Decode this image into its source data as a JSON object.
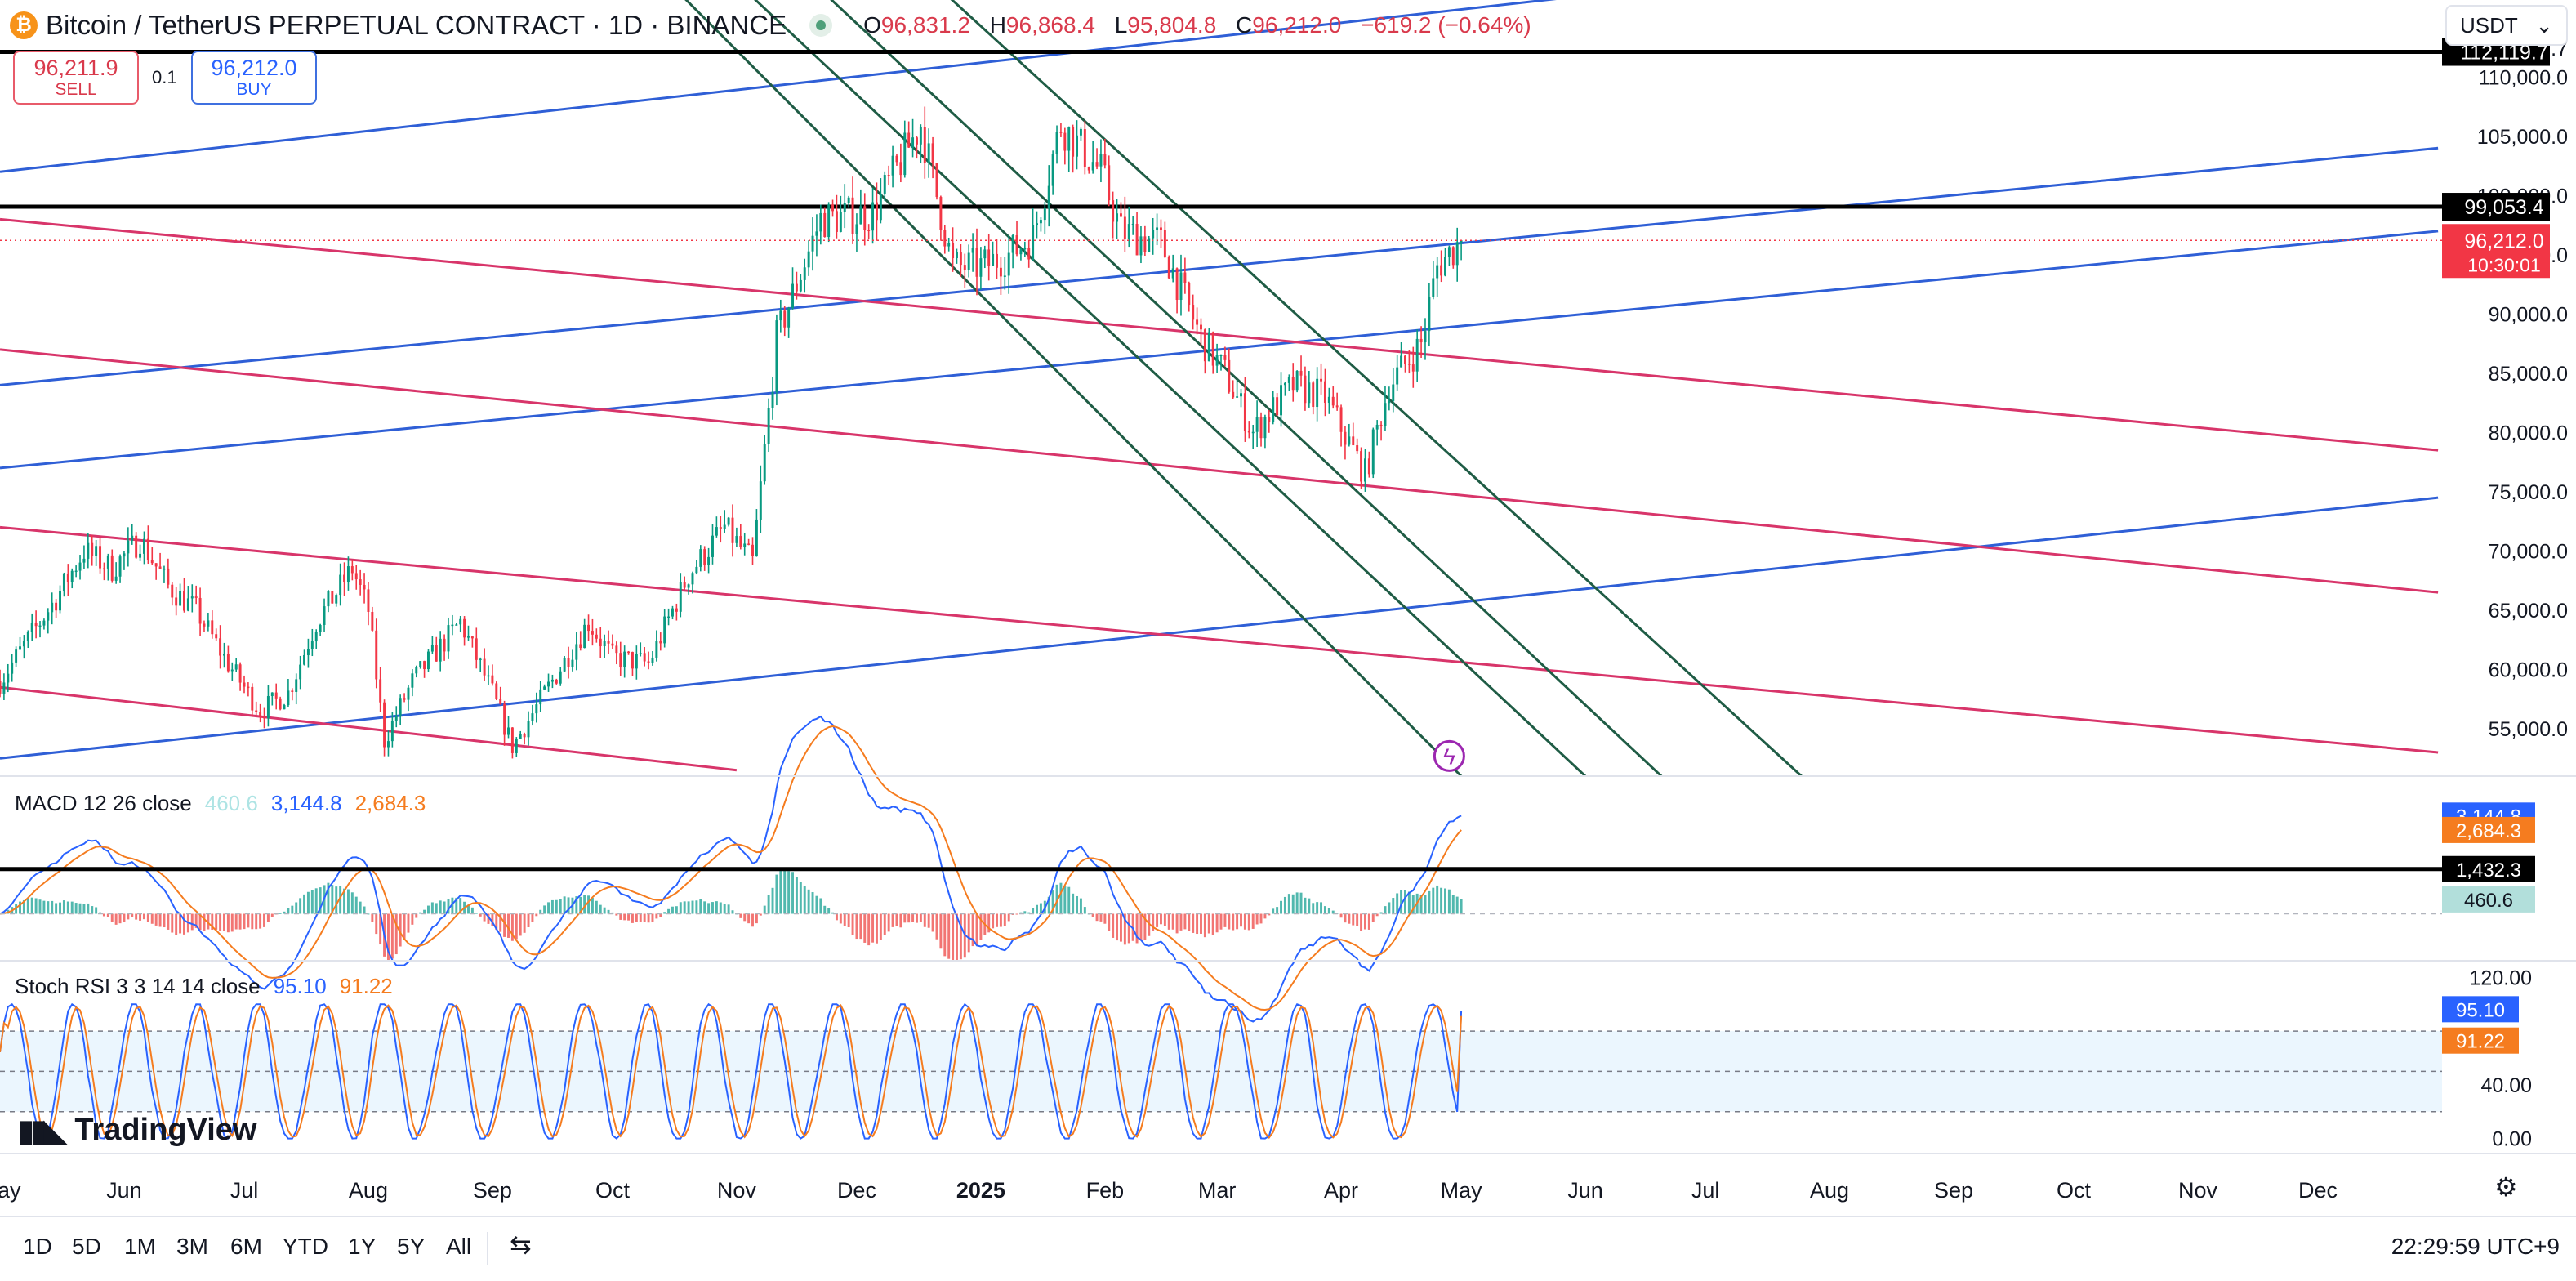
{
  "header": {
    "logo_glyph": "₿",
    "title": "Bitcoin / TetherUS PERPETUAL CONTRACT · 1D · BINANCE",
    "o_label": "O",
    "o": "96,831.2",
    "h_label": "H",
    "h": "96,868.4",
    "l_label": "L",
    "l": "95,804.8",
    "c_label": "C",
    "c": "96,212.0",
    "change": "−619.2 (−0.64%)"
  },
  "currency": {
    "value": "USDT",
    "chevron": "⌄"
  },
  "trade": {
    "sell_price": "96,211.9",
    "sell_label": "SELL",
    "spread": "0.1",
    "buy_price": "96,212.0",
    "buy_label": "BUY"
  },
  "indicators": {
    "macd": {
      "label": "MACD 12 26 close",
      "hist": "460.6",
      "macd": "3,144.8",
      "signal": "2,684.3"
    },
    "stoch": {
      "label": "Stoch RSI 3 3 14 14 close",
      "k": "95.10",
      "d": "91.22"
    }
  },
  "brand": {
    "mark": "▮▮◣",
    "name": "TradingView"
  },
  "timeframes": [
    "1D",
    "5D",
    "1M",
    "3M",
    "6M",
    "YTD",
    "1Y",
    "5Y",
    "All"
  ],
  "icons": {
    "compare": "⇆",
    "settings": "⚙",
    "lightning": "ϟ"
  },
  "clock": "22:29:59 UTC+9",
  "colors": {
    "up": "#089981",
    "down": "#f23645",
    "blue_line": "#2f5fd6",
    "pink_line": "#d8356a",
    "green_line": "#1f5c45",
    "macd": "#2962ff",
    "signal": "#f57c1f",
    "last_price": "#f23645"
  },
  "chart_data": {
    "type": "candlestick",
    "price_axis": {
      "ticks": [
        55000,
        60000,
        65000,
        70000,
        75000,
        80000,
        85000,
        90000,
        95000,
        100000,
        105000,
        110000
      ],
      "tick_labels": [
        "55,000.0",
        "60,000.0",
        "65,000.0",
        "70,000.0",
        "75,000.0",
        "80,000.0",
        "85,000.0",
        "90,000.0",
        "95,000.0",
        "100,000.0",
        "105,000.0",
        "110,000.0"
      ],
      "top_partial_label": "112,119.7",
      "range": [
        51000,
        116500
      ]
    },
    "time_axis": {
      "labels": [
        "May",
        "Jun",
        "Jul",
        "Aug",
        "Sep",
        "Oct",
        "Nov",
        "Dec",
        "2025",
        "Feb",
        "Mar",
        "Apr",
        "May",
        "Jun",
        "Jul",
        "Aug",
        "Sep",
        "Oct",
        "Nov",
        "Dec"
      ],
      "label_dates": [
        "2024-05-01",
        "2024-06-01",
        "2024-07-01",
        "2024-08-01",
        "2024-09-01",
        "2024-10-01",
        "2024-11-01",
        "2024-12-01",
        "2025-01-01",
        "2025-02-01",
        "2025-03-01",
        "2025-04-01",
        "2025-05-01",
        "2025-06-01",
        "2025-07-01",
        "2025-08-01",
        "2025-09-01",
        "2025-10-01",
        "2025-11-01",
        "2025-12-01"
      ],
      "bold_label": "2025",
      "range": [
        "2024-05-01",
        "2026-01-01"
      ]
    },
    "close_path": [
      [
        "2024-05-01",
        59000
      ],
      [
        "2024-05-08",
        62500
      ],
      [
        "2024-05-15",
        66000
      ],
      [
        "2024-05-22",
        70000
      ],
      [
        "2024-05-29",
        68500
      ],
      [
        "2024-06-05",
        71000
      ],
      [
        "2024-06-12",
        67000
      ],
      [
        "2024-06-19",
        65000
      ],
      [
        "2024-06-26",
        61000
      ],
      [
        "2024-07-05",
        56500
      ],
      [
        "2024-07-12",
        58000
      ],
      [
        "2024-07-19",
        64000
      ],
      [
        "2024-07-28",
        68500
      ],
      [
        "2024-08-01",
        65000
      ],
      [
        "2024-08-05",
        54000
      ],
      [
        "2024-08-12",
        59000
      ],
      [
        "2024-08-24",
        64000
      ],
      [
        "2024-09-01",
        58000
      ],
      [
        "2024-09-06",
        53500
      ],
      [
        "2024-09-15",
        58500
      ],
      [
        "2024-09-25",
        64000
      ],
      [
        "2024-10-01",
        61000
      ],
      [
        "2024-10-10",
        60500
      ],
      [
        "2024-10-20",
        68000
      ],
      [
        "2024-10-29",
        72000
      ],
      [
        "2024-11-05",
        69000
      ],
      [
        "2024-11-11",
        88000
      ],
      [
        "2024-11-22",
        98000
      ],
      [
        "2024-12-05",
        98500
      ],
      [
        "2024-12-17",
        106000
      ],
      [
        "2024-12-25",
        94000
      ],
      [
        "2025-01-01",
        94000
      ],
      [
        "2025-01-08",
        95000
      ],
      [
        "2025-01-14",
        96500
      ],
      [
        "2025-01-21",
        106000
      ],
      [
        "2025-01-31",
        102000
      ],
      [
        "2025-02-05",
        97000
      ],
      [
        "2025-02-15",
        96000
      ],
      [
        "2025-02-25",
        88000
      ],
      [
        "2025-03-03",
        85000
      ],
      [
        "2025-03-10",
        80000
      ],
      [
        "2025-03-20",
        84000
      ],
      [
        "2025-03-28",
        83000
      ],
      [
        "2025-04-07",
        76500
      ],
      [
        "2025-04-13",
        84000
      ],
      [
        "2025-04-21",
        87500
      ],
      [
        "2025-04-25",
        94000
      ],
      [
        "2025-05-01",
        96212
      ]
    ],
    "last_price": {
      "value": 96212,
      "label": "96,212.0",
      "countdown": "10:30:01"
    },
    "level_lines": [
      {
        "price": 99053.4,
        "label": "99,053.4"
      },
      {
        "price": 112119.7,
        "label": "112,119.7"
      }
    ],
    "trend_lines": [
      {
        "color": "blue",
        "from": [
          "2024-05-01",
          102000
        ],
        "to": [
          "2025-07-01",
          118000
        ]
      },
      {
        "color": "blue",
        "from": [
          "2024-05-01",
          84000
        ],
        "to": [
          "2025-12-31",
          104000
        ]
      },
      {
        "color": "blue",
        "from": [
          "2024-05-01",
          77000
        ],
        "to": [
          "2025-12-31",
          97000
        ]
      },
      {
        "color": "blue",
        "from": [
          "2024-05-01",
          52500
        ],
        "to": [
          "2025-12-31",
          74500
        ]
      },
      {
        "color": "pink",
        "from": [
          "2024-05-01",
          98000
        ],
        "to": [
          "2025-12-31",
          78500
        ]
      },
      {
        "color": "pink",
        "from": [
          "2024-05-01",
          87000
        ],
        "to": [
          "2025-12-31",
          66500
        ]
      },
      {
        "color": "pink",
        "from": [
          "2024-05-01",
          72000
        ],
        "to": [
          "2025-12-31",
          53000
        ]
      },
      {
        "color": "pink",
        "from": [
          "2024-05-01",
          58500
        ],
        "to": [
          "2024-11-01",
          51500
        ]
      },
      {
        "color": "green",
        "from": [
          "2024-10-15",
          118000
        ],
        "to": [
          "2025-05-01",
          51000
        ]
      },
      {
        "color": "green",
        "from": [
          "2024-11-01",
          118000
        ],
        "to": [
          "2025-06-01",
          51000
        ]
      },
      {
        "color": "green",
        "from": [
          "2024-11-20",
          118000
        ],
        "to": [
          "2025-06-20",
          51000
        ]
      },
      {
        "color": "green",
        "from": [
          "2024-12-20",
          118000
        ],
        "to": [
          "2025-07-25",
          51000
        ]
      }
    ],
    "macd_axis": {
      "range": [
        -1400,
        4200
      ],
      "labels": [
        {
          "value": 3144.8,
          "label": "3,144.8",
          "kind": "macd"
        },
        {
          "value": 2684.3,
          "label": "2,684.3",
          "kind": "signal"
        },
        {
          "value": 1432.3,
          "label": "1,432.3",
          "kind": "level"
        },
        {
          "value": 460.6,
          "label": "460.6",
          "kind": "hist"
        }
      ],
      "level_line": 1432.3
    },
    "stoch_axis": {
      "range": [
        -10,
        130
      ],
      "ticks": [
        120,
        40,
        0
      ],
      "tick_labels": [
        "120.00",
        "40.00",
        "0.00"
      ],
      "band": [
        20,
        80
      ],
      "current_labels": [
        {
          "value": 95.1,
          "label": "95.10",
          "kind": "k"
        },
        {
          "value": 91.22,
          "label": "91.22",
          "kind": "d"
        }
      ]
    }
  }
}
